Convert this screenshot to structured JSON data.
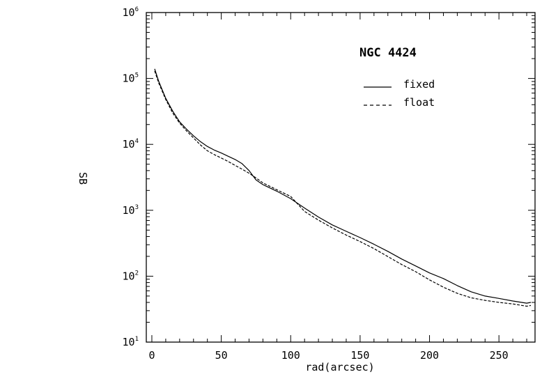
{
  "chart_data": {
    "type": "line",
    "title": "NGC 4424",
    "xlabel": "rad(arcsec)",
    "ylabel": "SB",
    "xlim": [
      -4,
      276
    ],
    "ylim": [
      10,
      1000000
    ],
    "yscale": "log",
    "x_ticks": [
      0,
      50,
      100,
      150,
      200,
      250
    ],
    "x_tick_labels": [
      "0",
      "50",
      "100",
      "150",
      "200",
      "250"
    ],
    "y_ticks": [
      10,
      100,
      1000,
      10000,
      100000,
      1000000
    ],
    "y_tick_labels": [
      {
        "base": "10",
        "exp": "1"
      },
      {
        "base": "10",
        "exp": "2"
      },
      {
        "base": "10",
        "exp": "3"
      },
      {
        "base": "10",
        "exp": "4"
      },
      {
        "base": "10",
        "exp": "5"
      },
      {
        "base": "10",
        "exp": "6"
      }
    ],
    "legend_position": "top-right",
    "series": [
      {
        "name": "fixed",
        "style": "solid",
        "x": [
          2,
          5,
          10,
          15,
          20,
          25,
          30,
          35,
          40,
          45,
          50,
          55,
          60,
          65,
          70,
          75,
          80,
          90,
          100,
          110,
          120,
          130,
          140,
          150,
          160,
          170,
          180,
          190,
          200,
          210,
          220,
          230,
          240,
          250,
          260,
          270,
          273
        ],
        "y": [
          140000,
          90000,
          50000,
          32000,
          22000,
          17000,
          13500,
          11000,
          9300,
          8200,
          7400,
          6600,
          5900,
          5100,
          4000,
          2900,
          2450,
          1950,
          1500,
          1080,
          790,
          600,
          480,
          385,
          305,
          238,
          182,
          143,
          112,
          92,
          72,
          58,
          50,
          46,
          42,
          39,
          40
        ]
      },
      {
        "name": "float",
        "style": "dashed",
        "x": [
          2,
          5,
          10,
          15,
          20,
          25,
          30,
          35,
          40,
          45,
          50,
          55,
          60,
          65,
          70,
          75,
          80,
          90,
          100,
          110,
          120,
          130,
          140,
          150,
          160,
          170,
          180,
          190,
          200,
          210,
          220,
          230,
          240,
          250,
          260,
          270,
          273
        ],
        "y": [
          130000,
          85000,
          48000,
          30000,
          21000,
          16000,
          12500,
          9800,
          8000,
          7000,
          6200,
          5500,
          4800,
          4200,
          3650,
          3100,
          2600,
          2050,
          1620,
          960,
          710,
          540,
          420,
          335,
          262,
          198,
          150,
          117,
          88,
          68,
          55,
          47,
          43,
          40,
          38,
          35,
          36
        ]
      }
    ]
  },
  "icons": {
    "legend_solid_sample": "solid-line-icon",
    "legend_dashed_sample": "dashed-line-icon"
  }
}
